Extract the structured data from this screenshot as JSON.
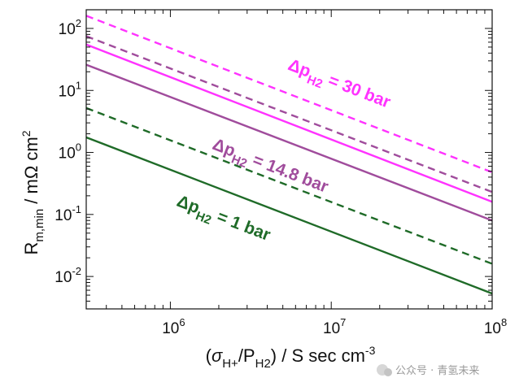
{
  "chart_data": {
    "type": "line",
    "x_scale": "log",
    "y_scale": "log",
    "xlim": [
      300000,
      100000000
    ],
    "ylim": [
      0.003,
      200
    ],
    "x_ticks": [
      {
        "value": 1000000,
        "base": "10",
        "exp": "6"
      },
      {
        "value": 10000000,
        "base": "10",
        "exp": "7"
      },
      {
        "value": 100000000,
        "base": "10",
        "exp": "8"
      }
    ],
    "y_ticks": [
      {
        "value": 0.01,
        "base": "10",
        "exp": "-2"
      },
      {
        "value": 0.1,
        "base": "10",
        "exp": "-1"
      },
      {
        "value": 1,
        "base": "10",
        "exp": "0"
      },
      {
        "value": 10,
        "base": "10",
        "exp": "1"
      },
      {
        "value": 100,
        "base": "10",
        "exp": "2"
      }
    ],
    "xlabel": {
      "prefix": "(",
      "sigma": "σ",
      "sub1": "H+",
      "mid": "/P",
      "sub2": "H2",
      "suffix": ") / S sec cm",
      "sup": "-3"
    },
    "ylabel": {
      "main": "R",
      "sub": "m,min",
      "suffix": " / mΩ cm",
      "sup": "2"
    },
    "series": [
      {
        "pressure": "30 bar",
        "style": "dashed",
        "color": "#ff33ff",
        "x": [
          300000,
          100000000
        ],
        "y": [
          160,
          0.48
        ]
      },
      {
        "pressure": "30 bar",
        "style": "solid",
        "color": "#ff33ff",
        "x": [
          300000,
          100000000
        ],
        "y": [
          55,
          0.16
        ]
      },
      {
        "pressure": "14.8 bar",
        "style": "dashed",
        "color": "#a04c9c",
        "x": [
          300000,
          100000000
        ],
        "y": [
          75,
          0.23
        ]
      },
      {
        "pressure": "14.8 bar",
        "style": "solid",
        "color": "#a04c9c",
        "x": [
          300000,
          100000000
        ],
        "y": [
          26,
          0.08
        ]
      },
      {
        "pressure": "1 bar",
        "style": "dashed",
        "color": "#1f6b28",
        "x": [
          300000,
          100000000
        ],
        "y": [
          5.2,
          0.016
        ]
      },
      {
        "pressure": "1 bar",
        "style": "solid",
        "color": "#1f6b28",
        "x": [
          300000,
          100000000
        ],
        "y": [
          1.75,
          0.0053
        ]
      }
    ],
    "annotations": [
      {
        "delta": "Δp",
        "sub": "H2",
        "value": " = 30 bar",
        "color": "#ff33ff"
      },
      {
        "delta": "Δp",
        "sub": "H2",
        "value": " = 14.8 bar",
        "color": "#a04c9c"
      },
      {
        "delta": "Δp",
        "sub": "H2",
        "value": " = 1 bar",
        "color": "#1f6b28"
      }
    ]
  },
  "watermark": "公众号 · 青氢未来"
}
